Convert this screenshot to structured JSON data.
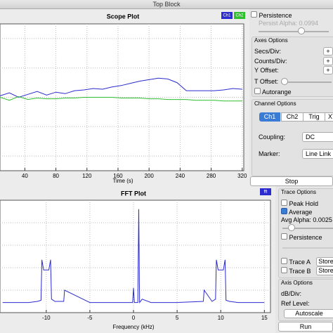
{
  "window_title": "Top Block",
  "scope_plot": {
    "title": "Scope Plot",
    "xlabel": "Time (s)",
    "xlim": [
      8,
      322
    ],
    "xticks": [
      40,
      80,
      120,
      160,
      200,
      240,
      280,
      320
    ],
    "ylim": [
      -1,
      1
    ],
    "ygrid": [
      -0.8,
      -0.4,
      0,
      0.4,
      0.8
    ],
    "grid": true,
    "series": [
      {
        "name": "Ch1",
        "color": "#2b2bd0",
        "x": [
          8,
          20,
          32,
          44,
          56,
          68,
          80,
          92,
          104,
          116,
          128,
          140,
          152,
          164,
          176,
          188,
          200,
          212,
          224,
          236,
          248,
          260,
          272,
          284,
          296,
          308,
          320
        ],
        "values": [
          0.02,
          0.06,
          0.0,
          0.04,
          0.08,
          0.03,
          0.07,
          0.05,
          0.09,
          0.1,
          0.12,
          0.11,
          0.14,
          0.16,
          0.19,
          0.22,
          0.24,
          0.26,
          0.25,
          0.2,
          0.09,
          0.09,
          0.09,
          0.09,
          0.1,
          0.12,
          0.11
        ]
      },
      {
        "name": "Ch2",
        "color": "#2fbf2f",
        "x": [
          8,
          20,
          32,
          44,
          56,
          68,
          80,
          92,
          104,
          116,
          128,
          140,
          152,
          164,
          176,
          188,
          200,
          212,
          224,
          236,
          248,
          260,
          272,
          284,
          296,
          308,
          320
        ],
        "values": [
          0.0,
          -0.04,
          0.01,
          -0.03,
          -0.01,
          -0.02,
          -0.02,
          -0.01,
          -0.01,
          0.0,
          0.0,
          0.0,
          0.0,
          -0.01,
          -0.01,
          -0.01,
          -0.02,
          -0.02,
          -0.03,
          -0.03,
          -0.03,
          -0.04,
          -0.04,
          -0.04,
          -0.05,
          -0.05,
          -0.05
        ]
      }
    ]
  },
  "scope_controls": {
    "persistence": "Persistence",
    "persist_alpha": "Persist Alpha: 0.0994",
    "axes_group": "Axes Options",
    "secs_div": "Secs/Div:",
    "counts_div": "Counts/Div:",
    "y_offset": "Y Offset:",
    "plus": "+",
    "t_offset": "T Offset:",
    "autorange": "Autorange",
    "channel_group": "Channel Options",
    "tabs": [
      "Ch1",
      "Ch2",
      "Trig",
      "XY"
    ],
    "coupling": "Coupling:",
    "coupling_value": "DC",
    "marker": "Marker:",
    "marker_value": "Line Link",
    "stop": "Stop"
  },
  "fft_plot": {
    "title": "FFT Plot",
    "xlabel": "Frequency (kHz)",
    "xlim": [
      -15.3,
      15.7
    ],
    "xticks": [
      -10,
      -5,
      0,
      5,
      10,
      15
    ],
    "ylim": [
      -100,
      0
    ],
    "ygrid": [
      -80,
      -60,
      -40,
      -20
    ],
    "grid": true,
    "series": [
      {
        "name": "fft",
        "color": "#2b2bd0",
        "x": [
          -15,
          -12,
          -11,
          -10.6,
          -10.5,
          -10.3,
          -10,
          -9.7,
          -9.5,
          -9.4,
          -9,
          -8,
          -7.9,
          -5,
          -2,
          -0.1,
          0,
          0.1,
          0.5,
          0.6,
          0.7,
          1,
          2,
          5,
          8,
          8.1,
          9,
          9.4,
          9.5,
          9.7,
          10,
          10.3,
          10.5,
          10.6,
          11,
          12,
          15
        ],
        "values": [
          -91,
          -91,
          -90,
          -89,
          -53,
          -62,
          -62,
          -62,
          -53,
          -88,
          -90,
          -90,
          -80,
          -91,
          -91,
          -91,
          -78,
          -91,
          -91,
          -8,
          -91,
          -88,
          -91,
          -91,
          -90,
          -80,
          -90,
          -88,
          -53,
          -62,
          -62,
          -62,
          -53,
          -89,
          -90,
          -91,
          -91
        ]
      }
    ]
  },
  "fft_controls": {
    "trace_group": "Trace Options",
    "peak_hold": "Peak Hold",
    "average": "Average",
    "avg_alpha": "Avg Alpha: 0.0025",
    "persistence": "Persistence",
    "trace_a": "Trace A",
    "trace_b": "Trace B",
    "store": "Store",
    "axis_group": "Axis Options",
    "db_div": "dB/Div:",
    "ref_level": "Ref Level:",
    "autoscale": "Autoscale",
    "run": "Run"
  }
}
